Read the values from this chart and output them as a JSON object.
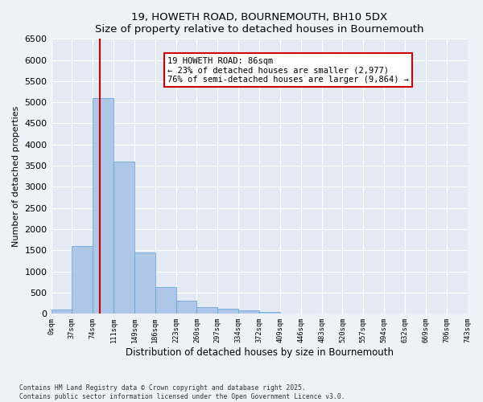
{
  "title1": "19, HOWETH ROAD, BOURNEMOUTH, BH10 5DX",
  "title2": "Size of property relative to detached houses in Bournemouth",
  "xlabel": "Distribution of detached houses by size in Bournemouth",
  "ylabel": "Number of detached properties",
  "bin_edges": [
    0,
    37,
    74,
    111,
    149,
    186,
    223,
    260,
    297,
    334,
    372,
    409,
    446,
    483,
    520,
    557,
    594,
    632,
    669,
    706,
    743
  ],
  "bin_labels": [
    "0sqm",
    "37sqm",
    "74sqm",
    "111sqm",
    "149sqm",
    "186sqm",
    "223sqm",
    "260sqm",
    "297sqm",
    "334sqm",
    "372sqm",
    "409sqm",
    "446sqm",
    "483sqm",
    "520sqm",
    "557sqm",
    "594sqm",
    "632sqm",
    "669sqm",
    "706sqm",
    "743sqm"
  ],
  "bar_values": [
    100,
    1600,
    5100,
    3600,
    1450,
    620,
    310,
    155,
    110,
    75,
    40,
    0,
    0,
    0,
    0,
    0,
    0,
    0,
    0,
    0
  ],
  "bar_color": "#aec6e8",
  "bar_edge_color": "#5a9fd4",
  "property_sqm": 86,
  "property_line_label": "19 HOWETH ROAD: 86sqm",
  "annotation_line1": "← 23% of detached houses are smaller (2,977)",
  "annotation_line2": "76% of semi-detached houses are larger (9,864) →",
  "annotation_box_color": "#ffffff",
  "annotation_box_edge_color": "#cc0000",
  "line_color": "#cc0000",
  "ylim": [
    0,
    6500
  ],
  "yticks": [
    0,
    500,
    1000,
    1500,
    2000,
    2500,
    3000,
    3500,
    4000,
    4500,
    5000,
    5500,
    6000,
    6500
  ],
  "footnote1": "Contains HM Land Registry data © Crown copyright and database right 2025.",
  "footnote2": "Contains public sector information licensed under the Open Government Licence v3.0.",
  "bg_color": "#eef2f8",
  "plot_bg_color": "#e4eaf4"
}
